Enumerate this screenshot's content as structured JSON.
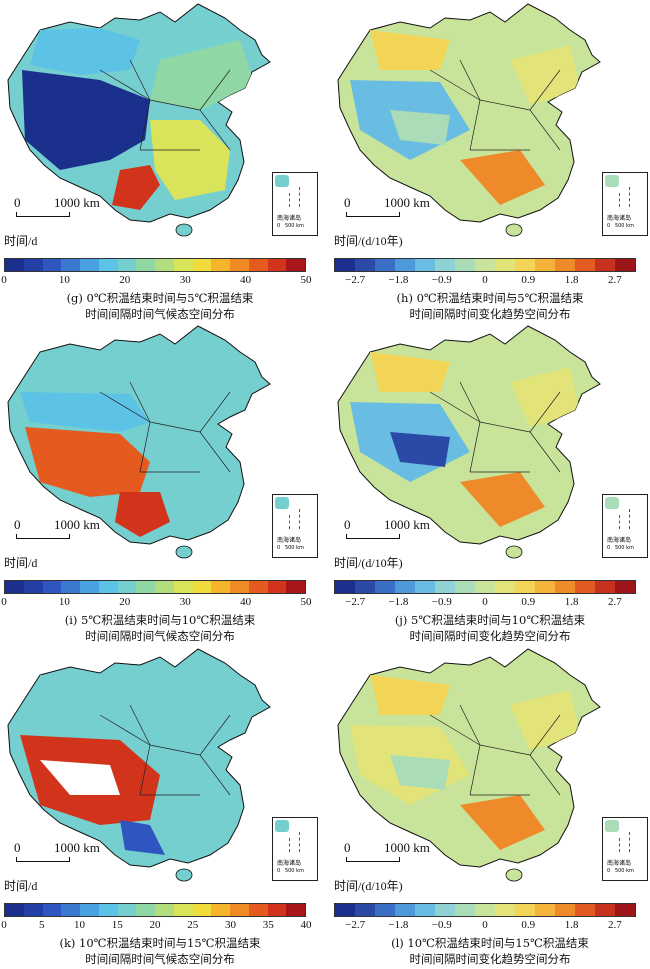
{
  "scale_label": "1000 km",
  "scale_zero": "0",
  "inset_label": "南海诸岛",
  "inset_scale": "0   500 km",
  "panels": [
    {
      "id": "g",
      "unit": "时间/d",
      "ticks": [
        "0",
        "10",
        "20",
        "30",
        "40",
        "50"
      ],
      "caption1": "(g) 0℃积温结束时间与5℃积温结束",
      "caption2": "时间间隔时间气候态空间分布"
    },
    {
      "id": "h",
      "unit": "时间/(d/10年)",
      "ticks": [
        "−2.7",
        "−1.8",
        "−0.9",
        "0",
        "0.9",
        "1.8",
        "2.7"
      ],
      "caption1": "(h) 0℃积温结束时间与5℃积温结束",
      "caption2": "时间间隔时间变化趋势空间分布"
    },
    {
      "id": "i",
      "unit": "时间/d",
      "ticks": [
        "0",
        "10",
        "20",
        "30",
        "40",
        "50"
      ],
      "caption1": "(i) 5℃积温结束时间与10℃积温结束",
      "caption2": "时间间隔时间气候态空间分布"
    },
    {
      "id": "j",
      "unit": "时间/(d/10年)",
      "ticks": [
        "−2.7",
        "−1.8",
        "−0.9",
        "0",
        "0.9",
        "1.8",
        "2.7"
      ],
      "caption1": "(j) 5℃积温结束时间与10℃积温结束",
      "caption2": "时间间隔时间变化趋势空间分布"
    },
    {
      "id": "k",
      "unit": "时间/d",
      "ticks": [
        "0",
        "5",
        "10",
        "15",
        "20",
        "25",
        "30",
        "35",
        "40"
      ],
      "caption1": "(k) 10℃积温结束时间与15℃积温结束",
      "caption2": "时间间隔时间气候态空间分布"
    },
    {
      "id": "l",
      "unit": "时间/(d/10年)",
      "ticks": [
        "−2.7",
        "−1.8",
        "−0.9",
        "0",
        "0.9",
        "1.8",
        "2.7"
      ],
      "caption1": "(l) 10℃积温结束时间与15℃积温结束",
      "caption2": "时间间隔时间变化趋势空间分布"
    }
  ],
  "colors": {
    "climatology": [
      "#1b2f8c",
      "#233fa6",
      "#2e55c0",
      "#3b78d0",
      "#49a2df",
      "#5cc2e6",
      "#76cfcf",
      "#8fd7a5",
      "#b3de7e",
      "#d9e45a",
      "#f2dc3c",
      "#f6b42a",
      "#f08a24",
      "#e55a1f",
      "#d1341b",
      "#a8161a"
    ],
    "trend": [
      "#1b2f8c",
      "#2b4aa8",
      "#3b6fc6",
      "#4e99da",
      "#69bde3",
      "#8ed2d6",
      "#a9dcb7",
      "#c8e39a",
      "#e2e47a",
      "#f2d557",
      "#f4b33a",
      "#ef8a2a",
      "#e25c22",
      "#c7321e",
      "#9c1519"
    ]
  }
}
